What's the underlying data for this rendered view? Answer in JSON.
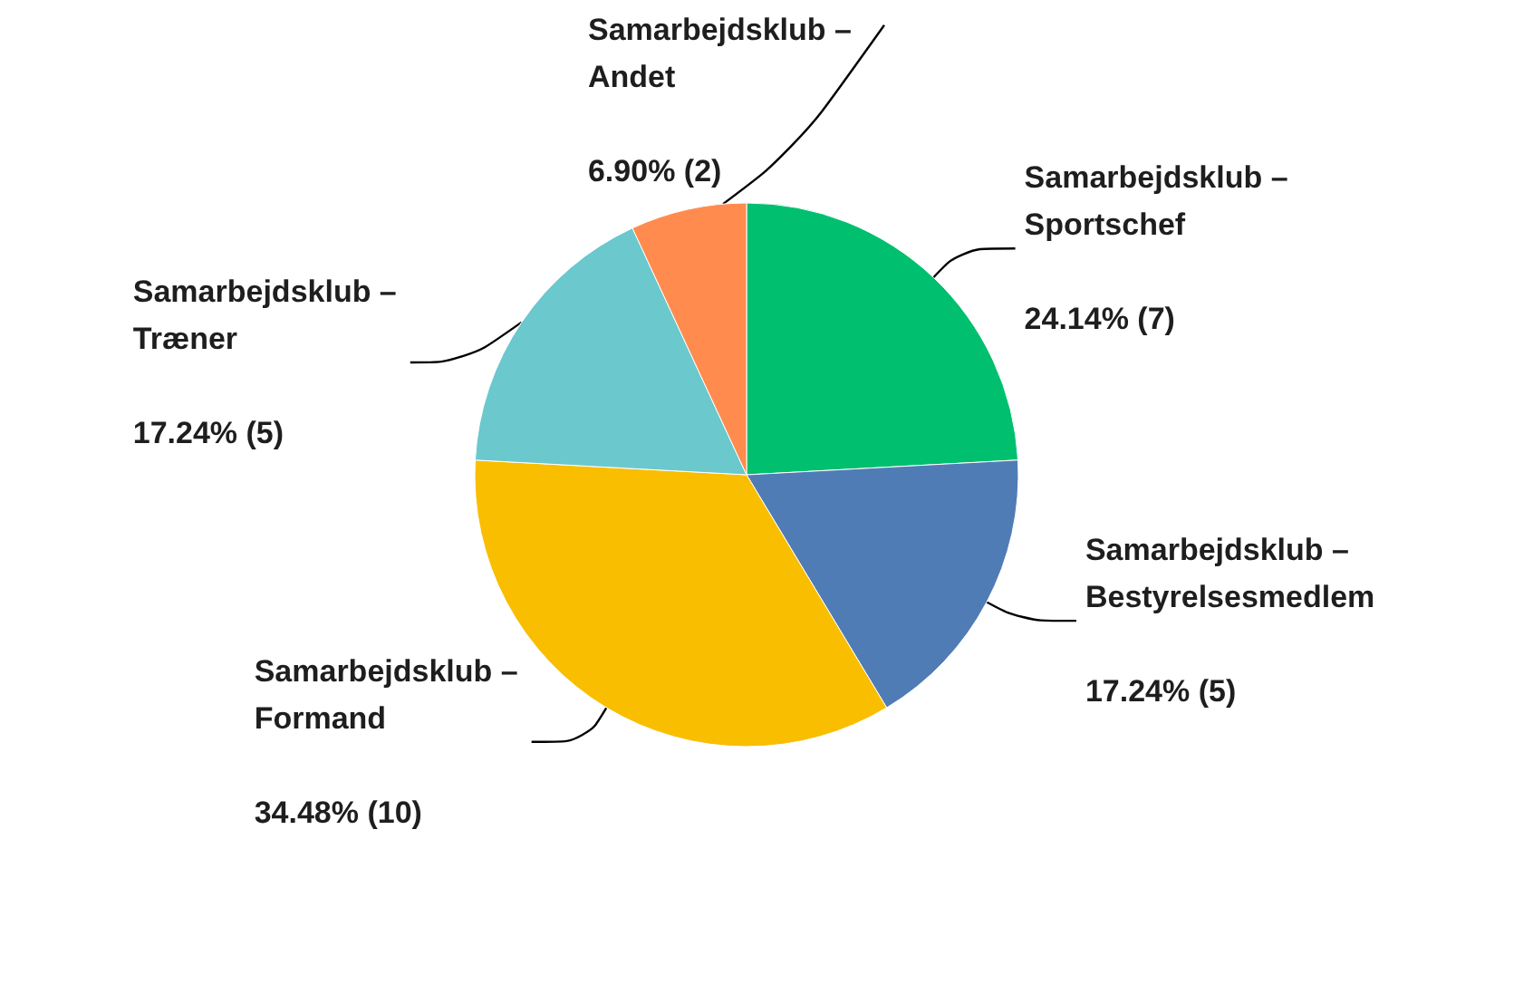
{
  "chart_data": {
    "type": "pie",
    "categories": [
      "Samarbejdsklub – Sportschef",
      "Samarbejdsklub – Bestyrelsesmedlem",
      "Samarbejdsklub – Formand",
      "Samarbejdsklub – Træner",
      "Samarbejdsklub – Andet"
    ],
    "values": [
      7,
      5,
      10,
      5,
      2
    ],
    "value_labels": [
      "24.14% (7)",
      "17.24% (5)",
      "34.48% (10)",
      "17.24% (5)",
      "6.90% (2)"
    ],
    "colors": [
      "#00bf6f",
      "#507cb6",
      "#f9be00",
      "#6bc8cd",
      "#ff8b4f"
    ]
  }
}
